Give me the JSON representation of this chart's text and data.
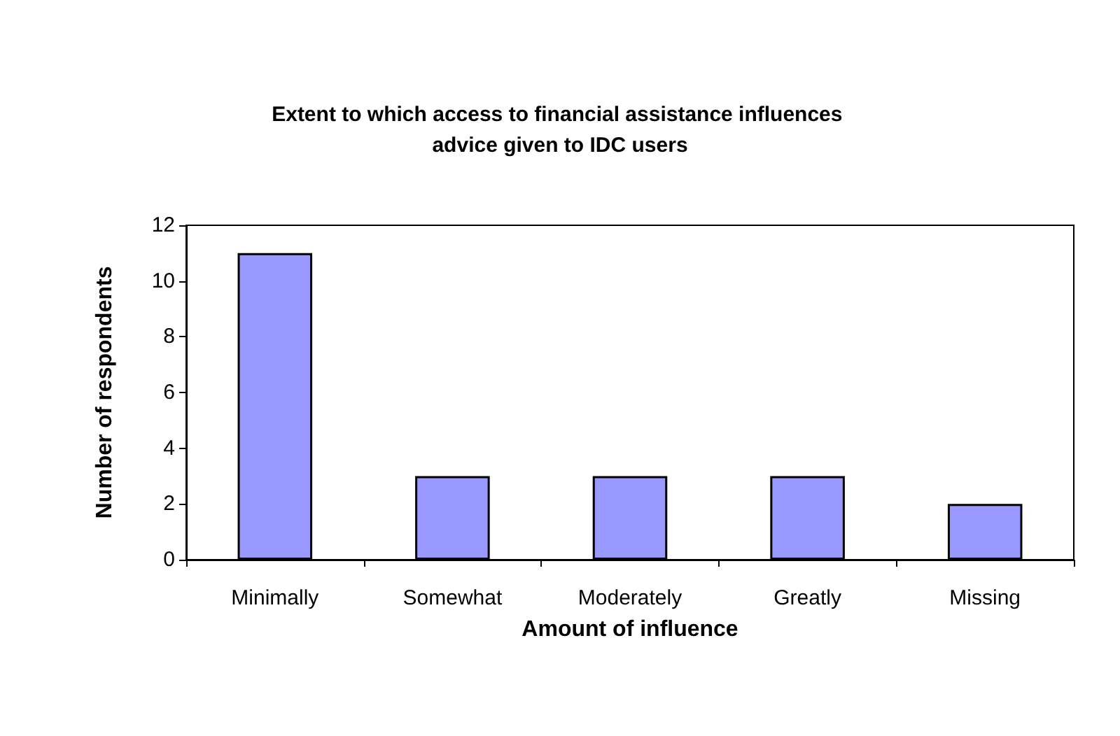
{
  "chart_data": {
    "type": "bar",
    "title": "Extent to which access to financial assistance influences advice given to IDC users",
    "xlabel": "Amount of influence",
    "ylabel": "Number of respondents",
    "categories": [
      "Minimally",
      "Somewhat",
      "Moderately",
      "Greatly",
      "Missing"
    ],
    "values": [
      11,
      3,
      3,
      3,
      2
    ],
    "color": "#9999ff",
    "ylim": [
      0,
      12
    ],
    "yticks": [
      0,
      2,
      4,
      6,
      8,
      10,
      12
    ]
  }
}
